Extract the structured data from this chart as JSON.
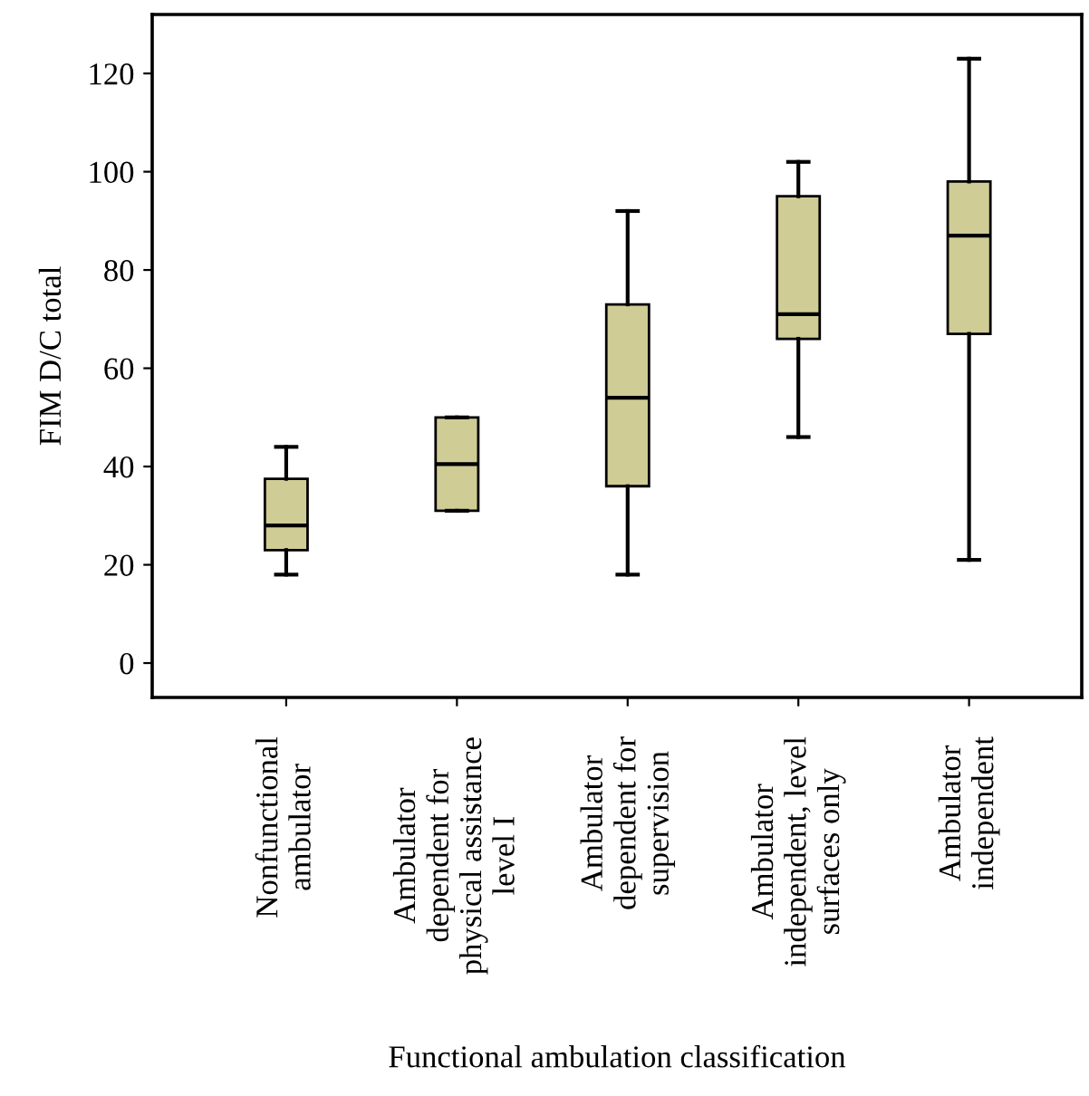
{
  "chart_data": {
    "type": "box",
    "xlabel": "Functional ambulation classification",
    "ylabel": "FIM D/C total",
    "categories": [
      "Nonfunctional\nambulator",
      "Ambulator\ndependent for\nphysical assistance\nlevel I",
      "Ambulator\ndependent for\nsupervision",
      "Ambulator\nindependent, level\nsurfaces only",
      "Ambulator\nindependent"
    ],
    "color": "#cfcc96",
    "boxes": [
      {
        "low": 18,
        "q1": 23,
        "median": 28,
        "q3": 37.5,
        "high": 44
      },
      {
        "low": 31,
        "q1": 31,
        "median": 40.5,
        "q3": 50,
        "high": 50
      },
      {
        "low": 18,
        "q1": 36,
        "median": 54,
        "q3": 73,
        "high": 92
      },
      {
        "low": 46,
        "q1": 66,
        "median": 71,
        "q3": 95,
        "high": 102
      },
      {
        "low": 21,
        "q1": 67,
        "median": 87,
        "q3": 98,
        "high": 123
      }
    ],
    "ylim": [
      -7,
      132
    ],
    "yticks": [
      0,
      20,
      40,
      60,
      80,
      100,
      120
    ],
    "grid": false
  }
}
